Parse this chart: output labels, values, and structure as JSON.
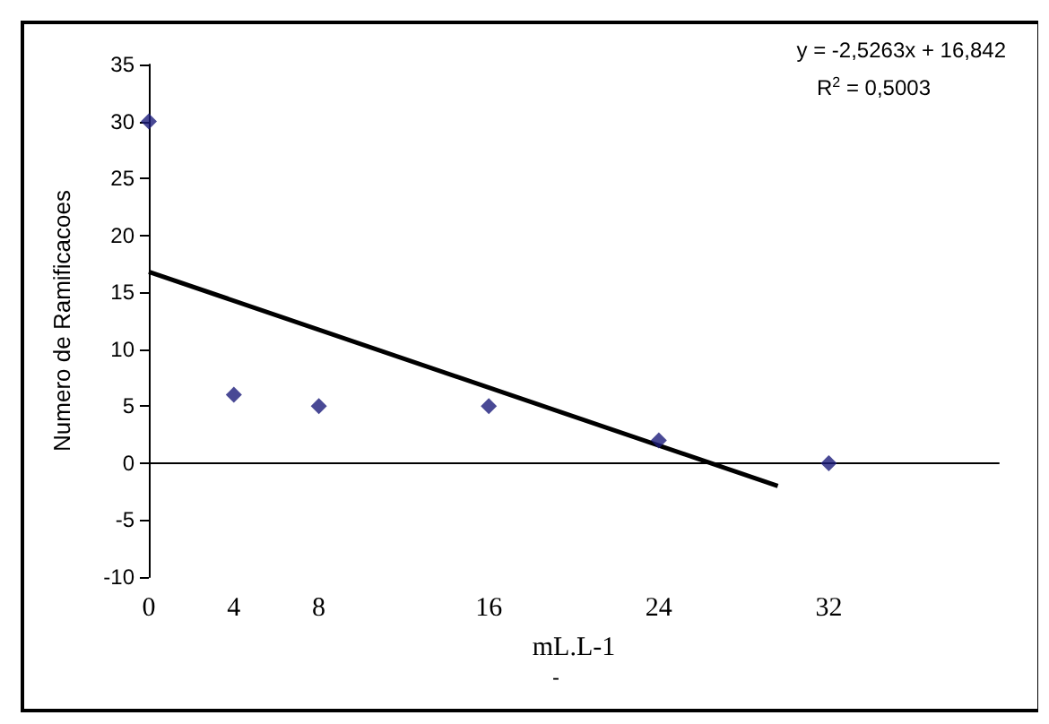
{
  "chart_data": {
    "type": "scatter",
    "xlabel": "mL.L-1",
    "ylabel": "Numero de Ramificacoes",
    "x": [
      0,
      4,
      8,
      16,
      24,
      32
    ],
    "series": [
      {
        "color": "#1c1c7a",
        "marker": "diamond",
        "values": [
          30,
          6,
          5,
          5,
          2,
          0
        ]
      },
      {
        "type": "line",
        "color": "#000000",
        "x": [
          0,
          29.6
        ],
        "values": [
          16.8,
          -2
        ]
      }
    ],
    "xlim": [
      0,
      40
    ],
    "xticks": [
      0,
      4,
      8,
      16,
      24,
      32
    ],
    "ylim": [
      -10,
      35
    ],
    "yticks": [
      -10,
      -5,
      0,
      5,
      10,
      15,
      20,
      25,
      30,
      35
    ],
    "annotations": [
      "y = -2,5263x + 16,842",
      "R$^{2}$ = 0,5003",
      "-"
    ]
  }
}
